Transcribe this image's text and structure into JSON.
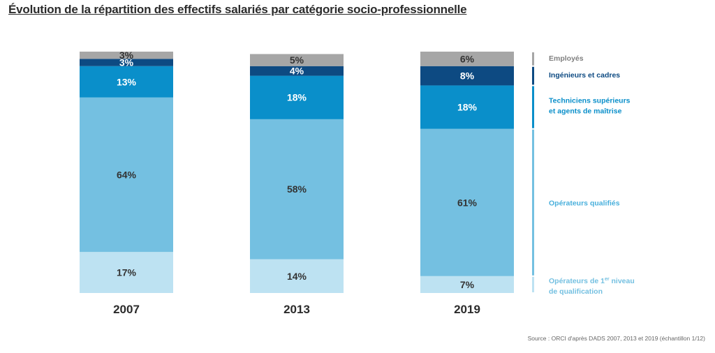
{
  "title": "Évolution de la répartition des effectifs salariés par catégorie socio-professionnelle",
  "source": "Source : ORCI d'après DADS 2007, 2013 et 2019 (échantillon 1/12)",
  "colors": {
    "employes": "#a6a6a6",
    "ingenieurs": "#0d4a82",
    "techniciens": "#0a8fca",
    "operateurs_qualifies": "#74c0e1",
    "operateurs_1er_niveau": "#bde2f2",
    "label_dark": "#333333"
  },
  "chart_data": {
    "type": "bar",
    "stacked": true,
    "normalized_percent": true,
    "title": "Évolution de la répartition des effectifs salariés par catégorie socio-professionnelle",
    "xlabel": "",
    "ylabel": "",
    "ylim": [
      0,
      100
    ],
    "grid": false,
    "legend_position": "right",
    "categories": [
      "2007",
      "2013",
      "2019"
    ],
    "series": [
      {
        "name": "Opérateurs de 1er niveau de qualification",
        "legend_lines": [
          "Opérateurs de 1",
          "de qualification"
        ],
        "legend_sup": "er",
        "legend_after_sup": " niveau",
        "color_key": "operateurs_1er_niveau",
        "values": [
          17,
          14,
          7
        ],
        "labels": [
          "17%",
          "14%",
          "7%"
        ]
      },
      {
        "name": "Opérateurs qualifiés",
        "legend_lines": [
          "Opérateurs qualifiés"
        ],
        "color_key": "operateurs_qualifies",
        "values": [
          64,
          58,
          61
        ],
        "labels": [
          "64%",
          "58%",
          "61%"
        ]
      },
      {
        "name": "Techniciens supérieurs et agents de maîtrise",
        "legend_lines": [
          "Techniciens supérieurs",
          "et agents de maîtrise"
        ],
        "color_key": "techniciens",
        "values": [
          13,
          18,
          18
        ],
        "labels": [
          "13%",
          "18%",
          "18%"
        ]
      },
      {
        "name": "Ingénieurs et cadres",
        "legend_lines": [
          "Ingénieurs et cadres"
        ],
        "color_key": "ingenieurs",
        "values": [
          3,
          4,
          8
        ],
        "labels": [
          "3%",
          "4%",
          "8%"
        ]
      },
      {
        "name": "Employés",
        "legend_lines": [
          "Employés"
        ],
        "color_key": "employes",
        "values": [
          3,
          5,
          6
        ],
        "labels": [
          "3%",
          "5%",
          "6%"
        ]
      }
    ]
  }
}
